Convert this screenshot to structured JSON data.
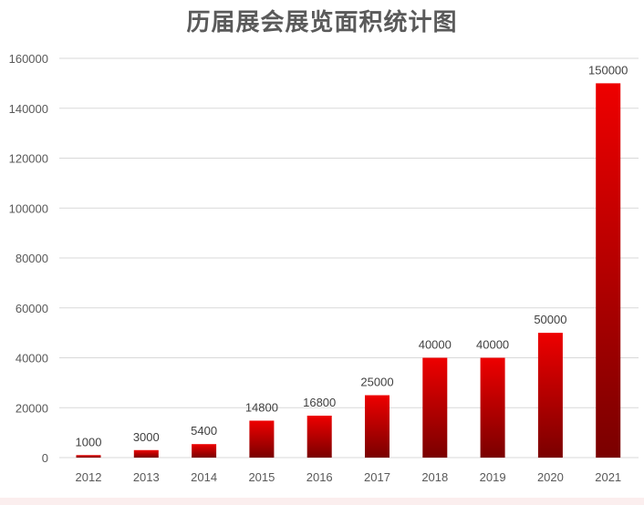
{
  "chart_data": {
    "type": "bar",
    "title": "历届展会展览面积统计图",
    "categories": [
      "2012",
      "2013",
      "2014",
      "2015",
      "2016",
      "2017",
      "2018",
      "2019",
      "2020",
      "2021"
    ],
    "values": [
      1000,
      3000,
      5400,
      14800,
      16800,
      25000,
      40000,
      40000,
      50000,
      150000
    ],
    "data_labels": [
      "1000",
      "3000",
      "5400",
      "14800",
      "16800",
      "25000",
      "40000",
      "40000",
      "50000",
      "150000"
    ],
    "ylim": [
      0,
      160000
    ],
    "y_ticks": [
      0,
      20000,
      40000,
      60000,
      80000,
      100000,
      120000,
      140000,
      160000
    ],
    "grid": true,
    "legend": "none",
    "colors": {
      "bar_top": "#ee0000",
      "bar_bottom": "#7a0000",
      "grid": "#d9d9d9",
      "axis_text": "#595959",
      "title": "#5a5a5a"
    }
  }
}
